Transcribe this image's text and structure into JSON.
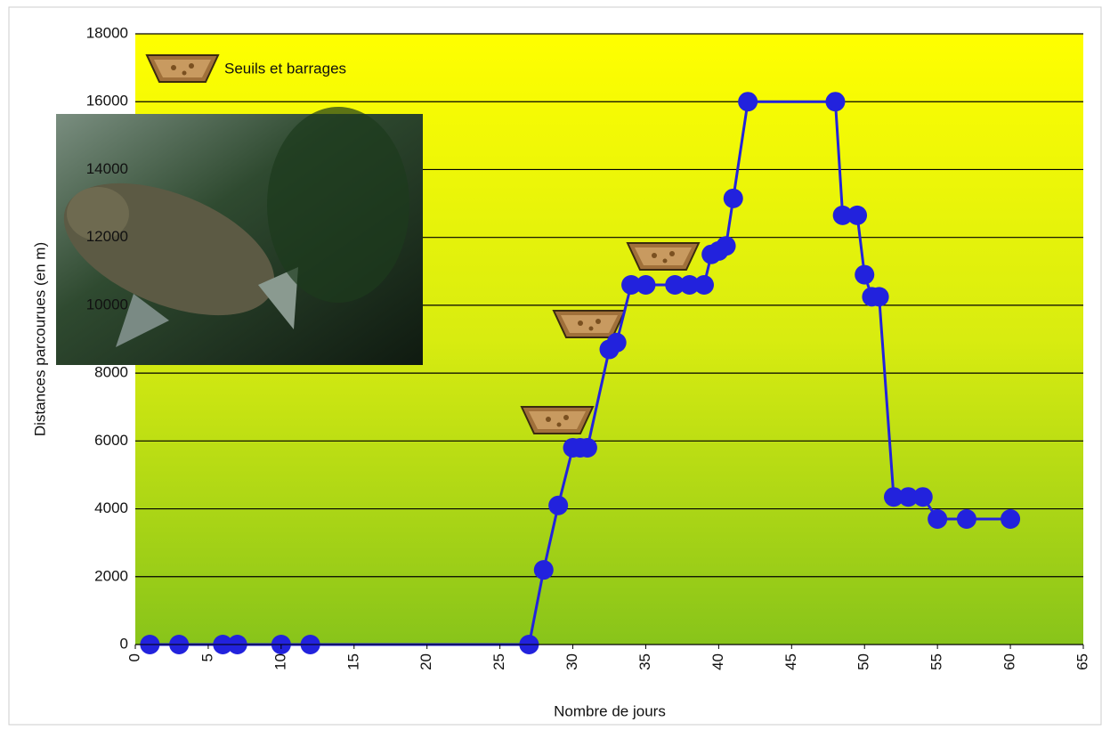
{
  "chart_data": {
    "type": "line",
    "x_label": "Nombre de jours",
    "y_label": "Distances parcourues (en m)",
    "legend_label": "Seuils et barrages",
    "xlim": [
      0,
      65
    ],
    "xticks": [
      0,
      5,
      10,
      15,
      20,
      25,
      30,
      35,
      40,
      45,
      50,
      55,
      60,
      65
    ],
    "ylim": [
      0,
      18000
    ],
    "yticks": [
      0,
      2000,
      4000,
      6000,
      8000,
      10000,
      12000,
      14000,
      16000,
      18000
    ],
    "grid": true,
    "series": [
      {
        "color": "#2222dd",
        "x": [
          1,
          3,
          6,
          7,
          10,
          12,
          27,
          28,
          29,
          30,
          30.5,
          31,
          32.5,
          33,
          34,
          35,
          37,
          38,
          39,
          39.5,
          40,
          40.5,
          41,
          42,
          48,
          48.5,
          49.5,
          50,
          50.5,
          51,
          52,
          53,
          54,
          55,
          57,
          60
        ],
        "values": [
          0,
          0,
          0,
          0,
          0,
          0,
          0,
          2200,
          4100,
          5800,
          5800,
          5800,
          8700,
          8900,
          10600,
          10600,
          10600,
          10600,
          10600,
          11500,
          11600,
          11750,
          13150,
          16000,
          16000,
          12650,
          12650,
          10900,
          10250,
          10250,
          4350,
          4350,
          4350,
          3700,
          3700,
          3700
        ]
      }
    ]
  }
}
